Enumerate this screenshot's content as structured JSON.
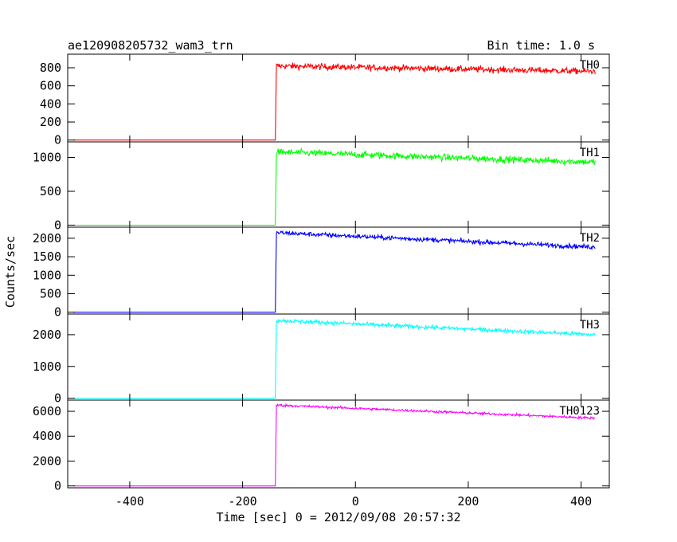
{
  "header": {
    "title": "ae120908205732_wam3_trn",
    "bin_time": "Bin time: 1.0 s"
  },
  "chart_data": {
    "type": "line",
    "title": "ae120908205732_wam3_trn",
    "subtitle": "Bin time: 1.0 s",
    "xlabel": "Time [sec] 0 = 2012/09/08 20:57:32",
    "ylabel": "Counts/sec",
    "xlim": [
      -510,
      450
    ],
    "xticks": [
      -400,
      -200,
      0,
      200,
      400
    ],
    "grid": false,
    "onset_time": -140,
    "end_time": 425,
    "panels": [
      {
        "name": "TH0",
        "color": "#ff0000",
        "ylim": [
          -20,
          950
        ],
        "yticks": [
          0,
          200,
          400,
          600,
          800
        ],
        "pre_level": 0,
        "start_level": 820,
        "end_level": 760,
        "noise": 25,
        "series": [
          {
            "name": "TH0",
            "x": [
              -500,
              -142,
              -140,
              -100,
              0,
              100,
              200,
              300,
              425
            ],
            "y": [
              0,
              0,
              820,
              820,
              810,
              800,
              790,
              770,
              760
            ]
          }
        ]
      },
      {
        "name": "TH1",
        "color": "#00ff00",
        "ylim": [
          -30,
          1230
        ],
        "yticks": [
          0,
          500,
          1000
        ],
        "pre_level": 0,
        "start_level": 1080,
        "end_level": 930,
        "noise": 35,
        "series": [
          {
            "name": "TH1",
            "x": [
              -500,
              -142,
              -140,
              -100,
              0,
              100,
              200,
              300,
              425
            ],
            "y": [
              0,
              0,
              1080,
              1075,
              1050,
              1020,
              990,
              960,
              930
            ]
          }
        ]
      },
      {
        "name": "TH2",
        "color": "#0000ff",
        "ylim": [
          -50,
          2300
        ],
        "yticks": [
          0,
          500,
          1000,
          1500,
          2000
        ],
        "pre_level": 0,
        "start_level": 2150,
        "end_level": 1760,
        "noise": 45,
        "series": [
          {
            "name": "TH2",
            "x": [
              -500,
              -142,
              -140,
              -100,
              0,
              100,
              200,
              300,
              425
            ],
            "y": [
              0,
              0,
              2150,
              2120,
              2050,
              1980,
              1900,
              1830,
              1760
            ]
          }
        ]
      },
      {
        "name": "TH3",
        "color": "#00ffff",
        "ylim": [
          -60,
          2650
        ],
        "yticks": [
          0,
          1000,
          2000
        ],
        "pre_level": 0,
        "start_level": 2450,
        "end_level": 2000,
        "noise": 45,
        "series": [
          {
            "name": "TH3",
            "x": [
              -500,
              -142,
              -140,
              -100,
              0,
              100,
              200,
              300,
              425
            ],
            "y": [
              0,
              0,
              2450,
              2420,
              2330,
              2250,
              2170,
              2090,
              2000
            ]
          }
        ]
      },
      {
        "name": "TH0123",
        "color": "#ff00ff",
        "ylim": [
          -150,
          6900
        ],
        "yticks": [
          0,
          2000,
          4000,
          6000
        ],
        "pre_level": 0,
        "start_level": 6500,
        "end_level": 5450,
        "noise": 70,
        "series": [
          {
            "name": "TH0123",
            "x": [
              -500,
              -142,
              -140,
              -100,
              0,
              100,
              200,
              300,
              425
            ],
            "y": [
              0,
              0,
              6500,
              6420,
              6250,
              6050,
              5850,
              5650,
              5450
            ]
          }
        ]
      }
    ]
  }
}
